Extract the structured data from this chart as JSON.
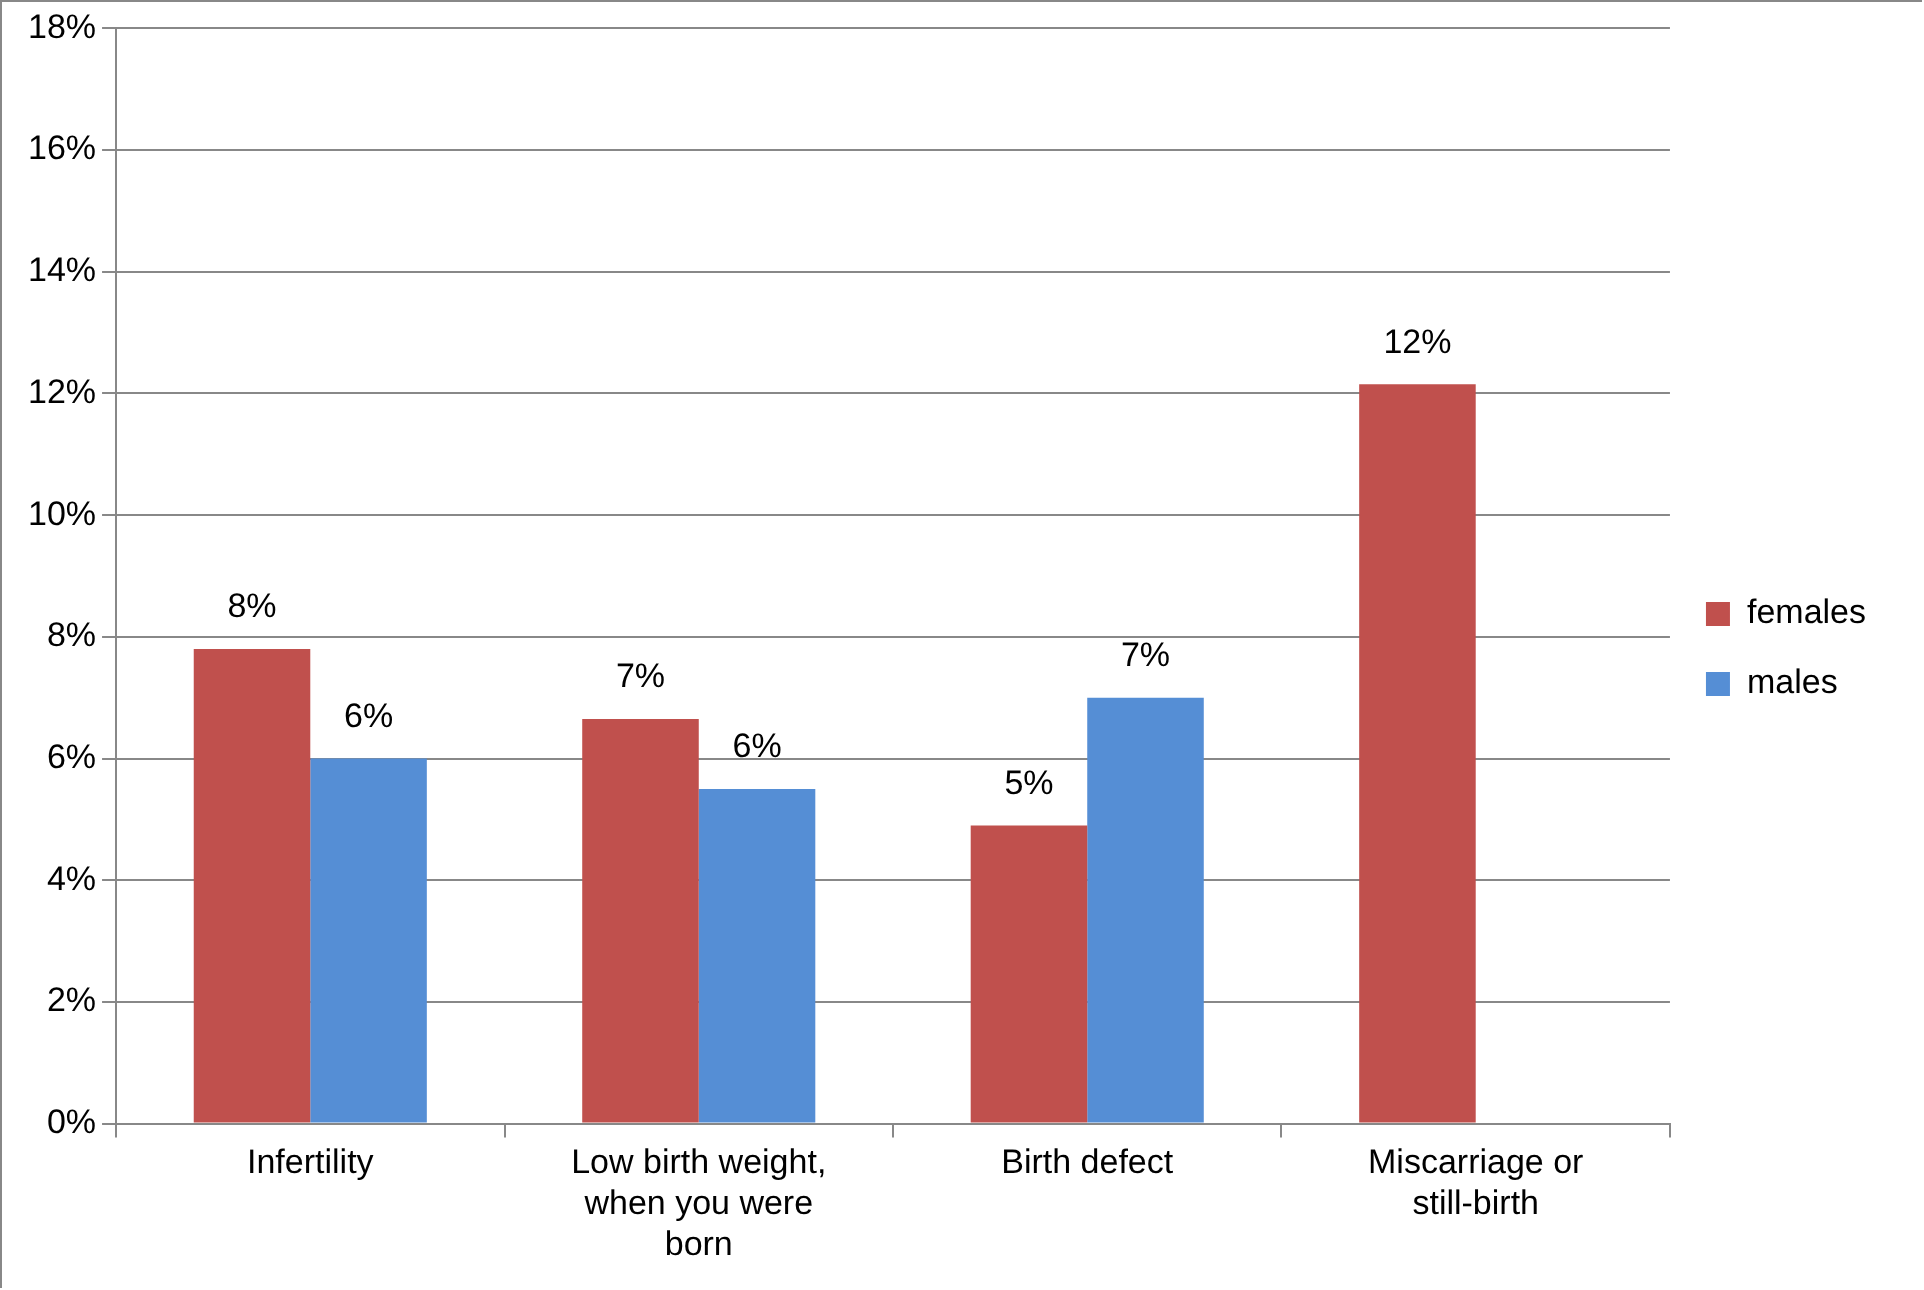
{
  "chart_data": {
    "type": "bar",
    "categories": [
      "Infertility",
      "Low birth weight, when you were born",
      "Birth defect",
      "Miscarriage or still-birth"
    ],
    "series": [
      {
        "name": "females",
        "color": "#c0504d",
        "values": [
          7.8,
          6.65,
          4.9,
          12.15
        ],
        "value_labels": [
          "8%",
          "7%",
          "5%",
          "12%"
        ]
      },
      {
        "name": "males",
        "color": "#558ed5",
        "values": [
          6.0,
          5.5,
          7.0,
          null
        ],
        "value_labels": [
          "6%",
          "6%",
          "7%",
          null
        ]
      }
    ],
    "ylim": [
      0,
      18
    ],
    "yticks": [
      {
        "value": 0,
        "label": "0%"
      },
      {
        "value": 2,
        "label": "2%"
      },
      {
        "value": 4,
        "label": "4%"
      },
      {
        "value": 6,
        "label": "6%"
      },
      {
        "value": 8,
        "label": "8%"
      },
      {
        "value": 10,
        "label": "10%"
      },
      {
        "value": 12,
        "label": "12%"
      },
      {
        "value": 14,
        "label": "14%"
      },
      {
        "value": 16,
        "label": "16%"
      },
      {
        "value": 18,
        "label": "18%"
      }
    ],
    "grid": "y",
    "legend": "right"
  }
}
